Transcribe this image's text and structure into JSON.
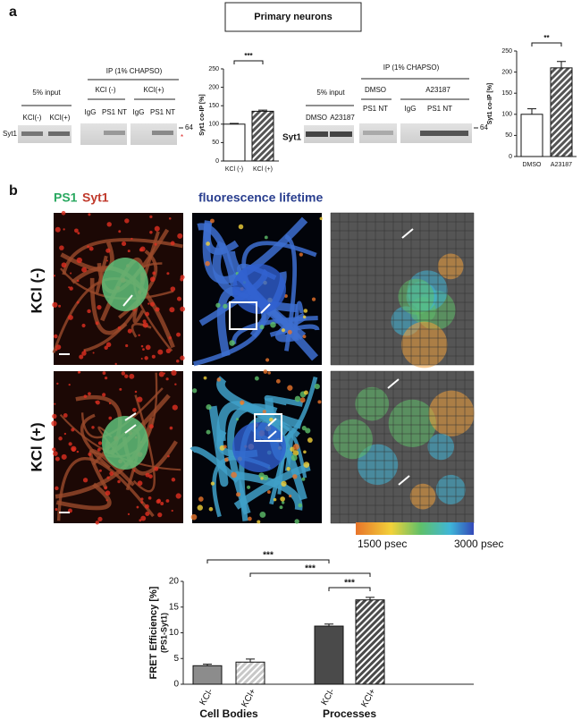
{
  "panel_a": {
    "label": "a",
    "title": "Primary neurons",
    "left_blot": {
      "input_label": "5% input",
      "lanes": [
        "KCl(-)",
        "KCl(+)"
      ],
      "protein": "Syt1",
      "ip_label": "IP (1% CHAPSO)",
      "conditions": [
        "KCl (-)",
        "KCl(+)"
      ],
      "antibodies": [
        "IgG",
        "PS1 NT",
        "IgG",
        "PS1 NT"
      ],
      "marker": "64",
      "asterisk": "*"
    },
    "right_blot": {
      "input_label": "5% input",
      "lanes": [
        "DMSO",
        "A23187"
      ],
      "protein": "Syt1",
      "ip_label": "IP (1% CHAPSO)",
      "conditions": [
        "DMSO",
        "A23187"
      ],
      "antibodies": [
        "PS1 NT",
        "IgG",
        "PS1 NT"
      ],
      "marker": "64"
    }
  },
  "panel_b": {
    "label": "b",
    "channels": [
      "PS1",
      "Syt1"
    ],
    "lifetime_title": "fluorescence lifetime",
    "rows": [
      "KCl (-)",
      "KCl (+)"
    ],
    "scale": [
      "1500 psec",
      "3000 psec"
    ]
  },
  "chart_data": [
    {
      "type": "bar",
      "y_label": "Syt1 co-IP [%]",
      "categories": [
        "KCl (-)",
        "KCl (+)"
      ],
      "values": [
        100,
        135
      ],
      "errors": [
        2,
        3
      ],
      "colors": [
        "#ffffff",
        "#555555"
      ],
      "patterns": [
        "solid",
        "hatch"
      ],
      "ylim": [
        0,
        250
      ],
      "yticks": [
        0,
        50,
        100,
        150,
        200,
        250
      ],
      "annotations": [
        "***"
      ]
    },
    {
      "type": "bar",
      "y_label": "Syt1 co-IP [%]",
      "categories": [
        "DMSO",
        "A23187"
      ],
      "values": [
        100,
        210
      ],
      "errors": [
        13,
        15
      ],
      "colors": [
        "#ffffff",
        "#555555"
      ],
      "patterns": [
        "solid",
        "hatch"
      ],
      "ylim": [
        0,
        250
      ],
      "yticks": [
        0,
        50,
        100,
        150,
        200,
        250
      ],
      "annotations": [
        "**"
      ]
    },
    {
      "type": "bar",
      "y_label": "FRET Efficiency [%]",
      "y_sublabel": "(PS1-Syt1)",
      "categories": [
        "KCl-",
        "KCl+",
        "KCl-",
        "KCl+"
      ],
      "groups": [
        "Cell Bodies",
        "Processes"
      ],
      "values": [
        3.6,
        4.3,
        11.3,
        16.4
      ],
      "errors": [
        0.3,
        0.6,
        0.4,
        0.5
      ],
      "colors": [
        "#8c8c8c",
        "#c8c8c8",
        "#4a4a4a",
        "#4a4a4a"
      ],
      "patterns": [
        "solid",
        "hatch",
        "solid",
        "hatch"
      ],
      "ylim": [
        0,
        20
      ],
      "yticks": [
        0,
        5,
        10,
        15,
        20
      ],
      "annotations": [
        "***",
        "***",
        "***"
      ]
    }
  ]
}
